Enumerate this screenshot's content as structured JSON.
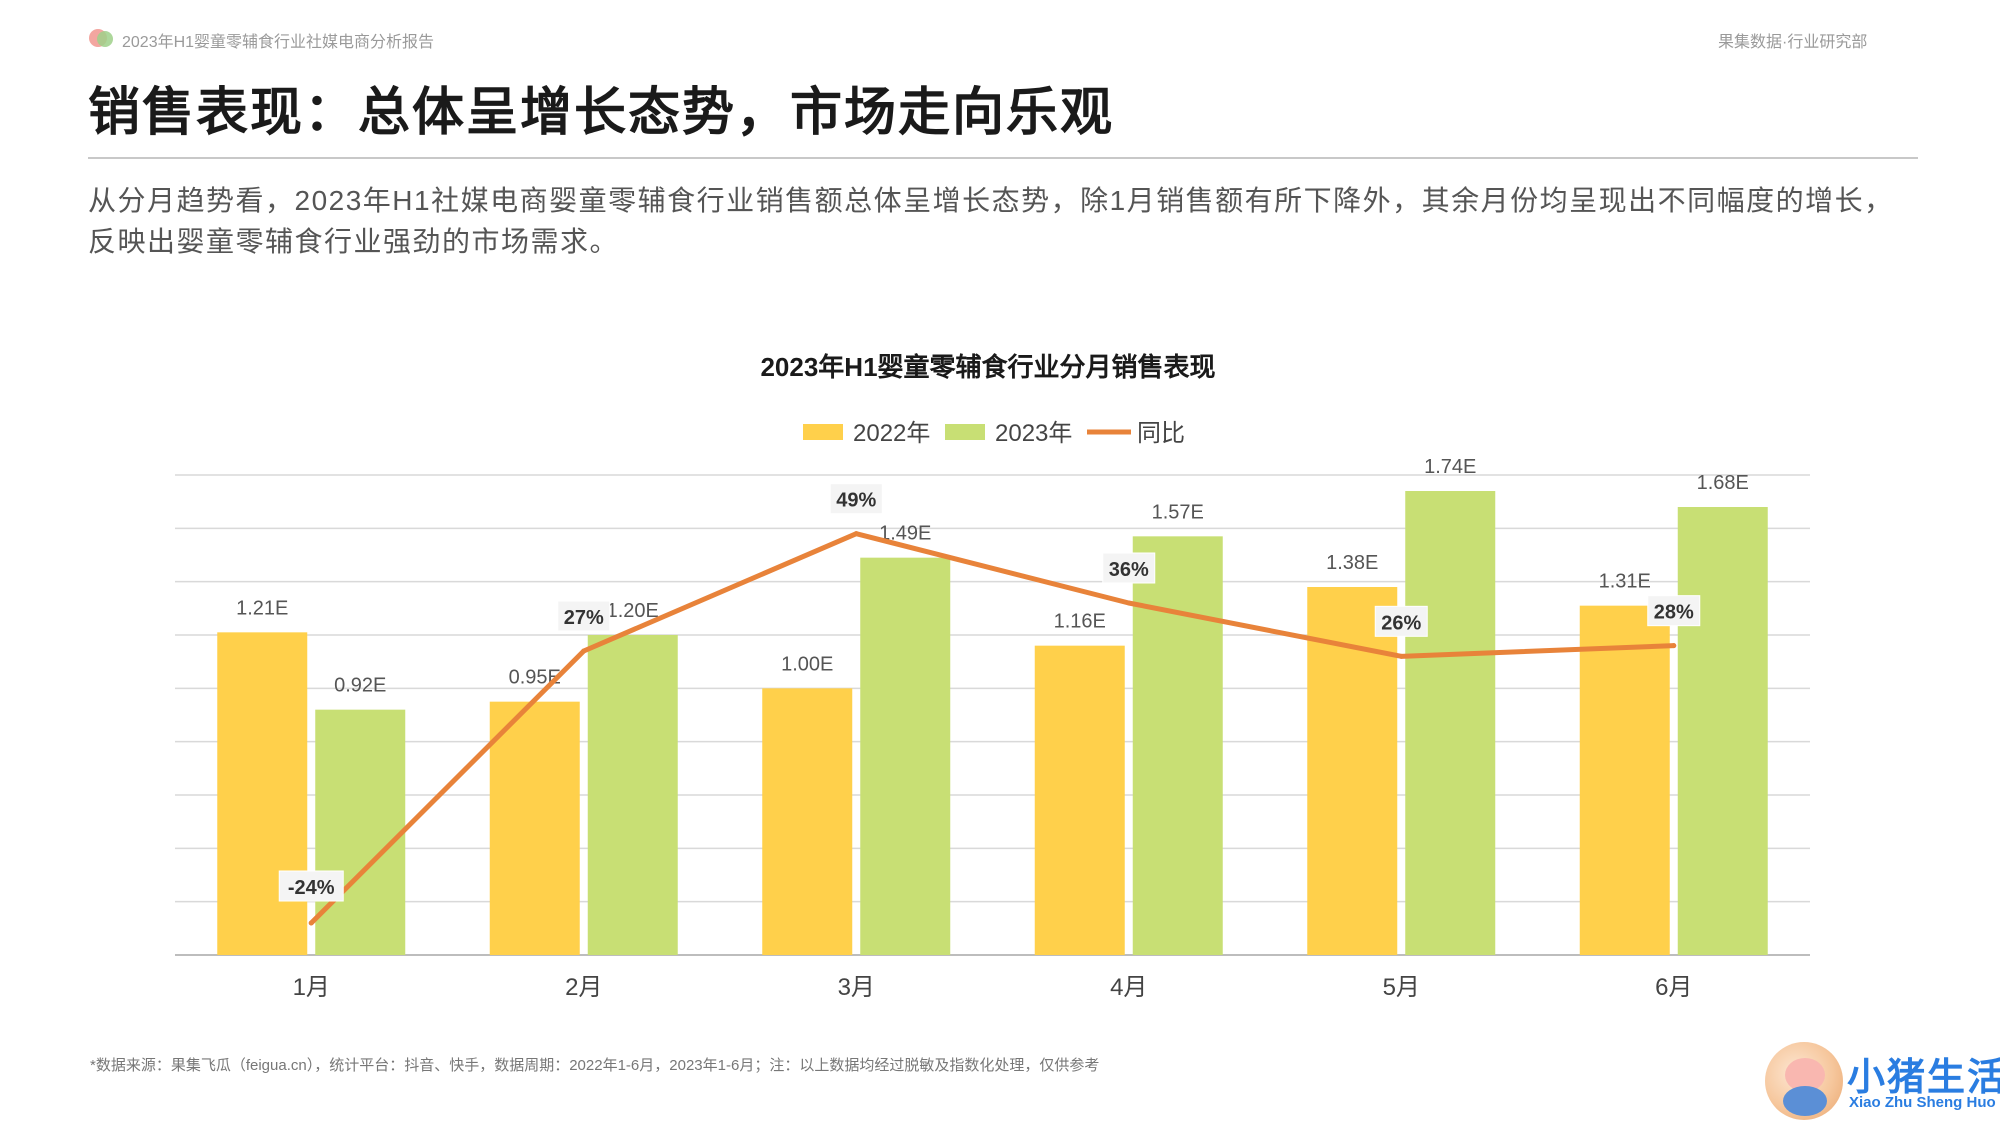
{
  "header": {
    "report_name": "2023年H1婴童零辅食行业社媒电商分析报告",
    "department": "果集数据·行业研究部"
  },
  "page_title": "销售表现：总体呈增长态势，市场走向乐观",
  "summary": "从分月趋势看，2023年H1社媒电商婴童零辅食行业销售额总体呈增长态势，除1月销售额有所下降外，其余月份均呈现出不同幅度的增长，反映出婴童零辅食行业强劲的市场需求。",
  "chart_data": {
    "type": "bar",
    "title": "2023年H1婴童零辅食行业分月销售表现",
    "categories": [
      "1月",
      "2月",
      "3月",
      "4月",
      "5月",
      "6月"
    ],
    "series": [
      {
        "name": "2022年",
        "kind": "bar",
        "color": "#FFD04B",
        "values": [
          1.21,
          0.95,
          1.0,
          1.16,
          1.38,
          1.31
        ],
        "labels": [
          "1.21E",
          "0.95E",
          "1.00E",
          "1.16E",
          "1.38E",
          "1.31E"
        ]
      },
      {
        "name": "2023年",
        "kind": "bar",
        "color": "#C8DF74",
        "values": [
          0.92,
          1.2,
          1.49,
          1.57,
          1.74,
          1.68
        ],
        "labels": [
          "0.92E",
          "1.20E",
          "1.49E",
          "1.57E",
          "1.74E",
          "1.68E"
        ]
      },
      {
        "name": "同比",
        "kind": "line",
        "color": "#E8833A",
        "values": [
          -24,
          27,
          49,
          36,
          26,
          28
        ],
        "labels": [
          "-24%",
          "27%",
          "49%",
          "36%",
          "26%",
          "28%"
        ]
      }
    ],
    "y_range": [
      0,
      1.8
    ],
    "y2_range": [
      -30,
      60
    ],
    "grid": true,
    "legend_position": "top-center"
  },
  "footnote": "*数据来源：果集飞瓜（feigua.cn），统计平台：抖音、快手，数据周期：2022年1-6月，2023年1-6月；注：以上数据均经过脱敏及指数化处理，仅供参考",
  "brand": {
    "name": "小猪生活",
    "subtitle": "Xiao Zhu Sheng Huo"
  }
}
